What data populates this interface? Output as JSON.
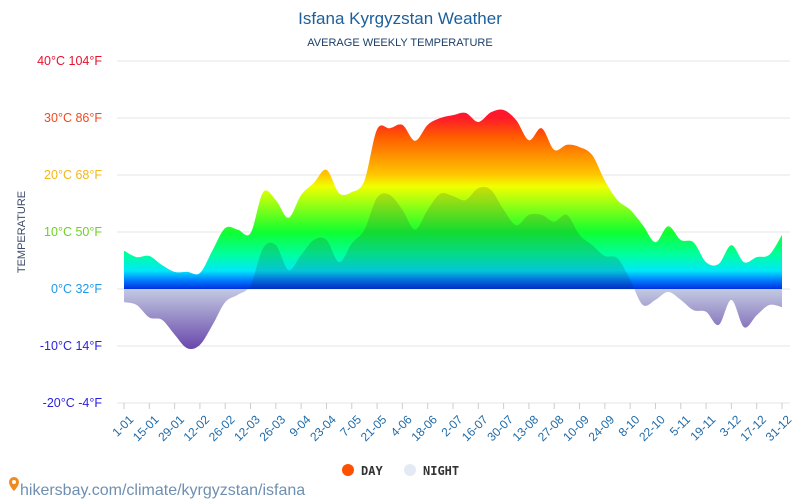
{
  "chart_data": {
    "type": "area",
    "title": "Isfana Kyrgyzstan Weather",
    "subtitle": "AVERAGE WEEKLY TEMPERATURE",
    "ylabel": "TEMPERATURE",
    "xlabel": "",
    "ylim": [
      -20,
      40
    ],
    "grid": true,
    "legend_placement": "bottom",
    "y_ticks": [
      {
        "value": 40,
        "label": "40°C 104°F",
        "color": "#e8112d"
      },
      {
        "value": 30,
        "label": "30°C 86°F",
        "color": "#f2491e"
      },
      {
        "value": 20,
        "label": "20°C 68°F",
        "color": "#f0b81a"
      },
      {
        "value": 10,
        "label": "10°C 50°F",
        "color": "#6ad41e"
      },
      {
        "value": 0,
        "label": "0°C 32°F",
        "color": "#1e9ae8"
      },
      {
        "value": -10,
        "label": "-10°C 14°F",
        "color": "#2a1ee0"
      },
      {
        "value": -20,
        "label": "-20°C -4°F",
        "color": "#2a1ee0"
      }
    ],
    "x_tick_labels": [
      "1-01",
      "15-01",
      "29-01",
      "12-02",
      "26-02",
      "12-03",
      "26-03",
      "9-04",
      "23-04",
      "7-05",
      "21-05",
      "4-06",
      "18-06",
      "2-07",
      "16-07",
      "30-07",
      "13-08",
      "27-08",
      "10-09",
      "24-09",
      "8-10",
      "22-10",
      "5-11",
      "19-11",
      "3-12",
      "17-12",
      "31-12"
    ],
    "series": [
      {
        "name": "DAY",
        "color": "#ff5000",
        "values": [
          6.7,
          5.6,
          5.8,
          4.2,
          3.0,
          3.0,
          2.8,
          6.8,
          10.7,
          10.4,
          9.8,
          17,
          15.6,
          12.5,
          16.5,
          18.6,
          20.9,
          16.8,
          17,
          19,
          28,
          28.2,
          28.8,
          26,
          28.8,
          30,
          30.5,
          30.9,
          29.3,
          31,
          31.4,
          29.6,
          26.1,
          28.2,
          24.4,
          25.3,
          24.9,
          23.5,
          19,
          15.6,
          13.9,
          11.2,
          8.2,
          11,
          8.6,
          8.2,
          4.7,
          4.4,
          7.7,
          4.7,
          5.6,
          6,
          9.5
        ]
      },
      {
        "name": "NIGHT",
        "color": "#e3eaf3",
        "values": [
          -2.3,
          -2.8,
          -5,
          -5.4,
          -8,
          -10.4,
          -9.8,
          -6.3,
          -2.3,
          -1,
          0.7,
          7.2,
          7.7,
          3.3,
          6,
          8.6,
          8.6,
          4.7,
          8,
          10.4,
          16,
          16.5,
          13.9,
          10.4,
          13.9,
          16.7,
          16.3,
          15.6,
          17.7,
          17.4,
          13.9,
          11.2,
          13,
          13,
          11.8,
          13,
          9.5,
          7.7,
          5.8,
          5.4,
          1.6,
          -2.8,
          -1.9,
          -0.5,
          -1.9,
          -3.7,
          -4,
          -6.3,
          -1.9,
          -6.7,
          -4.6,
          -2.8,
          -3.2
        ]
      }
    ]
  },
  "footer": {
    "source": "hikersbay.com/climate/kyrgyzstan/isfana"
  }
}
